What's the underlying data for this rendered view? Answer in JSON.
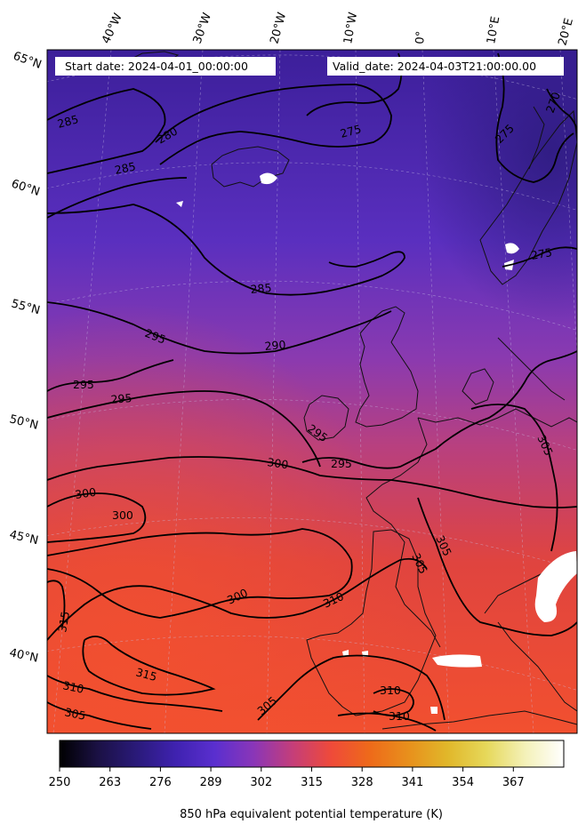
{
  "header": {
    "start_date": "Start date: 2024-04-01_00:00:00",
    "valid_date": "Valid_date: 2024-04-03T21:00:00.00"
  },
  "map": {
    "longitude_labels": [
      "40°W",
      "30°W",
      "20°W",
      "10°W",
      "0°",
      "10°E",
      "20°E"
    ],
    "latitude_labels": [
      "65°N",
      "60°N",
      "55°N",
      "50°N",
      "45°N",
      "40°N"
    ],
    "contour_labels": [
      "285",
      "280",
      "285",
      "275",
      "270",
      "275",
      "275",
      "285",
      "295",
      "290",
      "295",
      "295",
      "295",
      "295",
      "300",
      "300",
      "300",
      "305",
      "305",
      "305",
      "300",
      "310",
      "315",
      "315",
      "310",
      "305",
      "305",
      "310",
      "310"
    ],
    "field_colors": {
      "dark": "#3c1f9a",
      "mid_purple": "#5a2fbf",
      "purple_magenta": "#8a3ab0",
      "magenta": "#b8407f",
      "red": "#e0443f",
      "orange_red": "#f2502f",
      "missing": "#ffffff"
    }
  },
  "colorbar": {
    "title": "850 hPa equivalent potential temperature (K)",
    "ticks": [
      "250",
      "263",
      "276",
      "289",
      "302",
      "315",
      "328",
      "341",
      "354",
      "367"
    ],
    "colormap": [
      "#000000",
      "#1b1145",
      "#2a1a7a",
      "#3f22b0",
      "#5a2fcf",
      "#8a36b8",
      "#c43e7a",
      "#ef4a3a",
      "#ee6a1a",
      "#e8901c",
      "#e1b72a",
      "#e6d85a",
      "#f4f1b8",
      "#ffffff"
    ]
  }
}
